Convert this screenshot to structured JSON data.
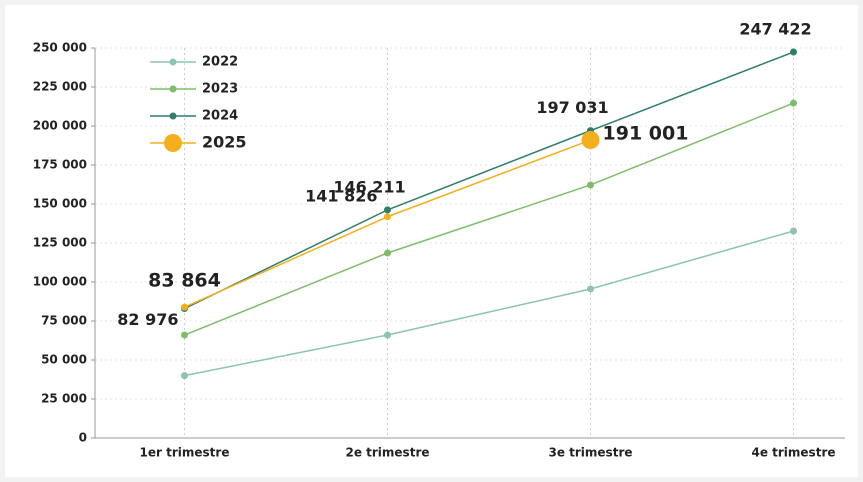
{
  "chart_data": {
    "type": "line",
    "categories": [
      "1er trimestre",
      "2e trimestre",
      "3e trimestre",
      "4e trimestre"
    ],
    "ylim": [
      0,
      250000
    ],
    "yticks": [
      0,
      {
        "value": 25000,
        "label": "25 000"
      },
      {
        "value": 50000,
        "label": "50 000"
      },
      {
        "value": 75000,
        "label": "75 000"
      },
      {
        "value": 100000,
        "label": "100 000"
      },
      {
        "value": 125000,
        "label": "125 000"
      },
      {
        "value": 150000,
        "label": "150 000"
      },
      {
        "value": 175000,
        "label": "175 000"
      },
      {
        "value": 200000,
        "label": "200 000"
      },
      {
        "value": 225000,
        "label": "225 000"
      },
      {
        "value": 250000,
        "label": "250 000"
      }
    ],
    "grid": true,
    "legend": "top-left",
    "series": [
      {
        "name": "2022",
        "color": "#8cc3b1",
        "values": [
          40000,
          66000,
          95500,
          132700
        ]
      },
      {
        "name": "2023",
        "color": "#7ebd6c",
        "values": [
          66000,
          118600,
          162200,
          214700
        ]
      },
      {
        "name": "2024",
        "color": "#2f7e6a",
        "values": [
          82976,
          146211,
          197031,
          247422
        ],
        "value_labels": [
          "82 976",
          "146 211",
          "197 031",
          "247 422"
        ]
      },
      {
        "name": "2025",
        "color": "#f5ae1c",
        "values": [
          83864,
          141826,
          191001,
          null
        ],
        "value_labels": [
          "83 864",
          "141 826",
          "191 001",
          null
        ]
      }
    ]
  }
}
